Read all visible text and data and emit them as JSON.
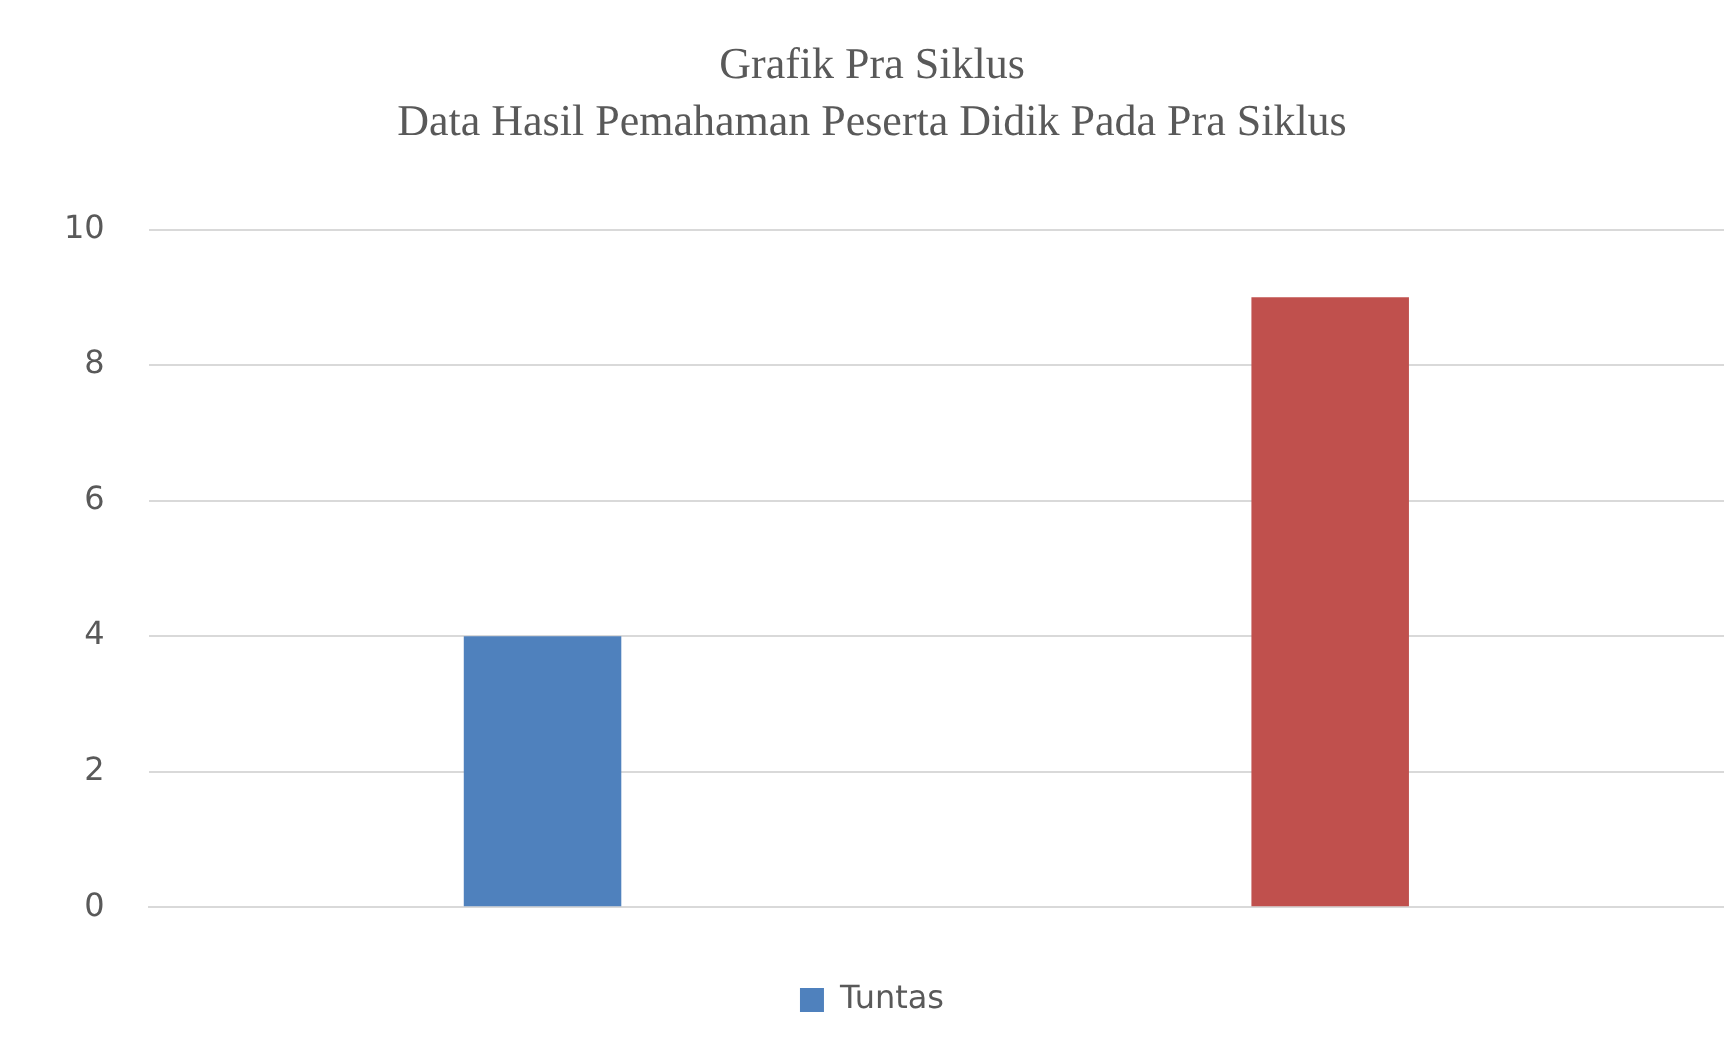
{
  "chart_data": {
    "type": "bar",
    "title": "Grafik Pra Siklus",
    "subtitle": "Data Hasil Pemahaman Peserta Didik Pada Pra Siklus",
    "categories": [
      null
    ],
    "series": [
      {
        "name": "Tuntas",
        "color": "#4f81bd",
        "values": [
          4
        ]
      },
      {
        "color": "#c0504d",
        "values": [
          9
        ]
      }
    ],
    "ylim": [
      0,
      10
    ],
    "yticks": [
      0,
      2,
      4,
      6,
      8,
      10
    ],
    "grid": "y",
    "legend": "bottom"
  }
}
